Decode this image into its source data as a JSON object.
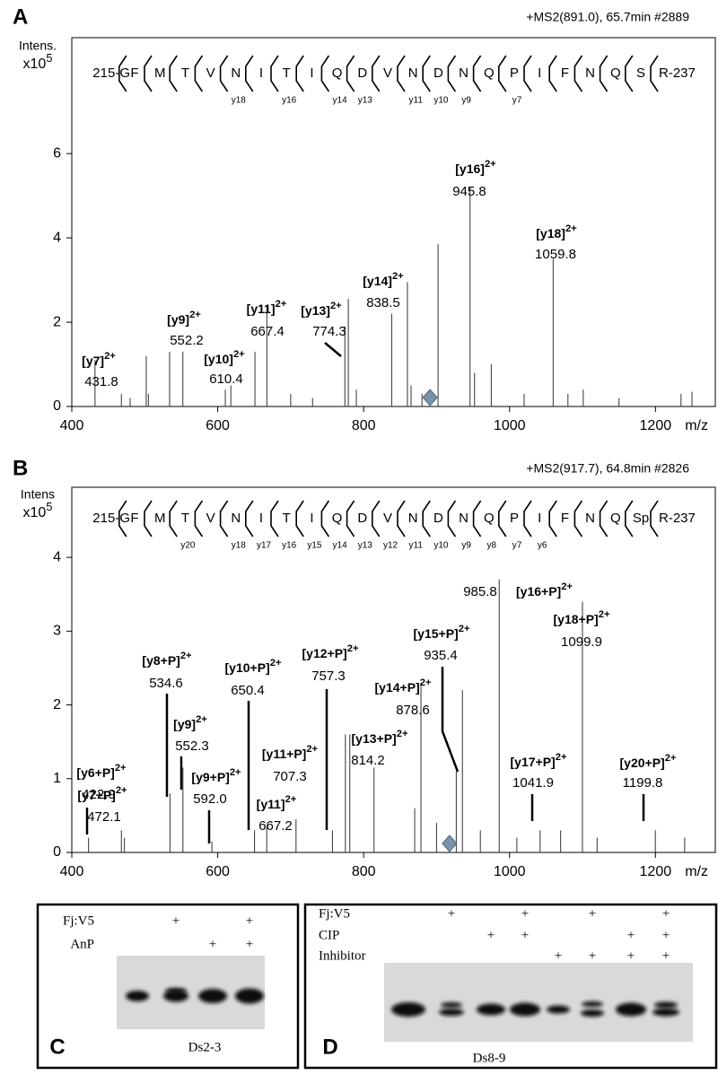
{
  "chart_data": [
    {
      "type": "stem",
      "panel": "A",
      "header": "+MS2(891.0), 65.7min #2889",
      "y_label": "Intens.",
      "y_scale": "x10",
      "y_scale_exp": "5",
      "x_label": "m/z",
      "xlim": [
        400,
        1282
      ],
      "xticks": [
        400,
        600,
        800,
        1000,
        1200
      ],
      "ylim": [
        0,
        8.75
      ],
      "yticks": [
        0,
        2,
        4,
        6
      ],
      "color": "#444",
      "precursor_mz": 891.0,
      "sequence": {
        "start": "215-G",
        "end": "R-237",
        "residues": [
          "F",
          "M",
          "T",
          "V",
          "N",
          "I",
          "T",
          "I",
          "Q",
          "D",
          "V",
          "N",
          "D",
          "N",
          "Q",
          "P",
          "I",
          "F",
          "N",
          "Q",
          "S"
        ],
        "fragments": [
          null,
          null,
          null,
          null,
          "y18",
          null,
          "y16",
          null,
          "y14",
          "y13",
          null,
          "y11",
          "y10",
          "y9",
          null,
          "y7",
          null,
          null,
          null,
          null,
          null
        ]
      },
      "x": [
        431.8,
        468,
        480,
        502,
        505,
        534,
        552.2,
        610.4,
        618,
        651,
        667.4,
        700,
        730,
        774.3,
        779,
        790,
        838.5,
        860,
        865,
        880,
        902,
        945.8,
        952,
        975,
        1020,
        1059.8,
        1080,
        1101,
        1150,
        1235,
        1250
      ],
      "values": [
        1.1,
        0.3,
        0.2,
        1.2,
        0.3,
        1.3,
        1.3,
        0.4,
        0.5,
        1.3,
        2.4,
        0.3,
        0.2,
        1.9,
        2.55,
        0.4,
        2.2,
        2.95,
        0.5,
        0.3,
        3.85,
        5.2,
        0.8,
        1.0,
        0.3,
        3.5,
        0.3,
        0.4,
        0.2,
        0.3,
        0.35
      ],
      "annotations": [
        {
          "ion": "[y7]",
          "charge": "2+",
          "mz": "431.8"
        },
        {
          "ion": "[y9]",
          "charge": "2+",
          "mz": "552.2"
        },
        {
          "ion": "[y10]",
          "charge": "2+",
          "mz": "610.4"
        },
        {
          "ion": "[y11]",
          "charge": "2+",
          "mz": "667.4"
        },
        {
          "ion": "[y13]",
          "charge": "2+",
          "mz": "774.3"
        },
        {
          "ion": "[y14]",
          "charge": "2+",
          "mz": "838.5"
        },
        {
          "ion": "[y16]",
          "charge": "2+",
          "mz": "945.8"
        },
        {
          "ion": "[y18]",
          "charge": "2+",
          "mz": "1059.8"
        }
      ]
    },
    {
      "type": "stem",
      "panel": "B",
      "header": "+MS2(917.7), 64.8min #2826",
      "y_label": "Intens",
      "y_scale": "x10",
      "y_scale_exp": "5",
      "x_label": "m/z",
      "xlim": [
        400,
        1282
      ],
      "xticks": [
        400,
        600,
        800,
        1000,
        1200
      ],
      "ylim": [
        0,
        4.95
      ],
      "yticks": [
        0,
        1,
        2,
        3,
        4
      ],
      "color": "#444",
      "precursor_mz": 917.7,
      "sequence": {
        "start": "215-G",
        "end": "R-237",
        "residues": [
          "F",
          "M",
          "T",
          "V",
          "N",
          "I",
          "T",
          "I",
          "Q",
          "D",
          "V",
          "N",
          "D",
          "N",
          "Q",
          "P",
          "I",
          "F",
          "N",
          "Q",
          "Sp"
        ],
        "fragments": [
          null,
          null,
          "y20",
          null,
          "y18",
          "y17",
          "y16",
          "y15",
          "y14",
          "y13",
          "y12",
          "y11",
          "y10",
          "y9",
          "y8",
          "y7",
          "y6",
          null,
          null,
          null,
          null
        ]
      },
      "x": [
        422.9,
        468,
        472.1,
        534.6,
        552.3,
        592.0,
        650.4,
        667.2,
        707.3,
        757.3,
        775,
        781,
        814.2,
        870,
        878.6,
        900,
        927,
        935.4,
        960,
        985.8,
        1010,
        1041.9,
        1070,
        1099.9,
        1120,
        1199.8,
        1240
      ],
      "values": [
        0.2,
        0.3,
        0.2,
        0.8,
        1.15,
        0.15,
        0.3,
        0.35,
        0.45,
        0.3,
        1.6,
        1.6,
        1.15,
        0.6,
        2.3,
        0.4,
        1.1,
        2.2,
        0.3,
        3.7,
        0.2,
        0.3,
        0.3,
        3.4,
        0.2,
        0.3,
        0.2
      ],
      "annotations": [
        {
          "ion": "[y6+P]",
          "charge": "2+",
          "mz": "422.9"
        },
        {
          "ion": "[y7+P]",
          "charge": "2+",
          "mz": "472.1"
        },
        {
          "ion": "[y8+P]",
          "charge": "2+",
          "mz": "534.6"
        },
        {
          "ion": "[y9]",
          "charge": "2+",
          "mz": "552.3"
        },
        {
          "ion": "[y9+P]",
          "charge": "2+",
          "mz": "592.0"
        },
        {
          "ion": "[y10+P]",
          "charge": "2+",
          "mz": "650.4"
        },
        {
          "ion": "[y11]",
          "charge": "2+",
          "mz": "667.2"
        },
        {
          "ion": "[y11+P]",
          "charge": "2+",
          "mz": "707.3"
        },
        {
          "ion": "[y12+P]",
          "charge": "2+",
          "mz": "757.3"
        },
        {
          "ion": "[y13+P]",
          "charge": "2+",
          "mz": "814.2"
        },
        {
          "ion": "[y14+P]",
          "charge": "2+",
          "mz": "878.6"
        },
        {
          "ion": "[y15+P]",
          "charge": "2+",
          "mz": "935.4"
        },
        {
          "ion": "[y16+P]",
          "charge": "2+",
          "mz": "985.8"
        },
        {
          "ion": "[y17+P]",
          "charge": "2+",
          "mz": "1041.9"
        },
        {
          "ion": "[y18+P]",
          "charge": "2+",
          "mz": "1099.9"
        },
        {
          "ion": "[y20+P]",
          "charge": "2+",
          "mz": "1199.8"
        }
      ]
    }
  ],
  "gels": [
    {
      "letter": "C",
      "caption": "Ds2-3",
      "rows": [
        {
          "label": "Fj:V5",
          "lanes": [
            null,
            "+",
            null,
            "+"
          ]
        },
        {
          "label": "AnP",
          "lanes": [
            null,
            null,
            "+",
            "+"
          ]
        }
      ]
    },
    {
      "letter": "D",
      "caption": "Ds8-9",
      "rows": [
        {
          "label": "Fj:V5",
          "lanes": [
            null,
            "+",
            null,
            "+",
            null,
            "+",
            null,
            "+"
          ]
        },
        {
          "label": "CIP",
          "lanes": [
            null,
            null,
            "+",
            "+",
            null,
            null,
            "+",
            "+"
          ]
        },
        {
          "label": "Inhibitor",
          "lanes": [
            null,
            null,
            null,
            null,
            "+",
            "+",
            "+",
            "+"
          ]
        }
      ]
    }
  ]
}
